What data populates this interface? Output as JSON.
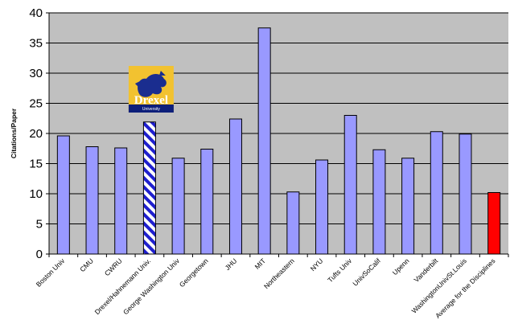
{
  "chart_data": {
    "type": "bar",
    "ylabel": "Citations/Paper",
    "ylim": [
      0,
      40
    ],
    "yticks": [
      0,
      5,
      10,
      15,
      20,
      25,
      30,
      35,
      40
    ],
    "grid": true,
    "categories": [
      "Boston Univ",
      "CMU",
      "CWRU",
      "Drexel/Hahnemann Univ.",
      "George Washington Univ",
      "Georgetown",
      "JHU",
      "MIT",
      "Northeastern",
      "NYU",
      "Tufts Univ",
      "UnivSoCalif",
      "Upenn",
      "Vanderbilt",
      "WashingtonUnivSt.Louis",
      "Average for the Disciplines"
    ],
    "values": [
      19.6,
      17.8,
      17.6,
      21.9,
      15.9,
      17.4,
      22.4,
      37.5,
      10.3,
      15.6,
      23.0,
      17.3,
      15.9,
      20.3,
      19.9,
      10.2
    ],
    "colors": {
      "bar": "#9999ff",
      "highlight_stripe_a": "#1f1fcf",
      "highlight_stripe_b": "#ffffff",
      "average": "#ff0000",
      "plot_bg": "#c0c0c0"
    },
    "bar_styles": [
      "normal",
      "normal",
      "normal",
      "striped",
      "normal",
      "normal",
      "normal",
      "normal",
      "normal",
      "normal",
      "normal",
      "normal",
      "normal",
      "normal",
      "normal",
      "average"
    ]
  },
  "logo": {
    "name": "Drexel",
    "subtitle": "University",
    "icon": "dragon-icon",
    "colors": {
      "bg": "#f2c230",
      "dragon": "#1a2d8f",
      "text_band": "#0d1f7a"
    }
  }
}
